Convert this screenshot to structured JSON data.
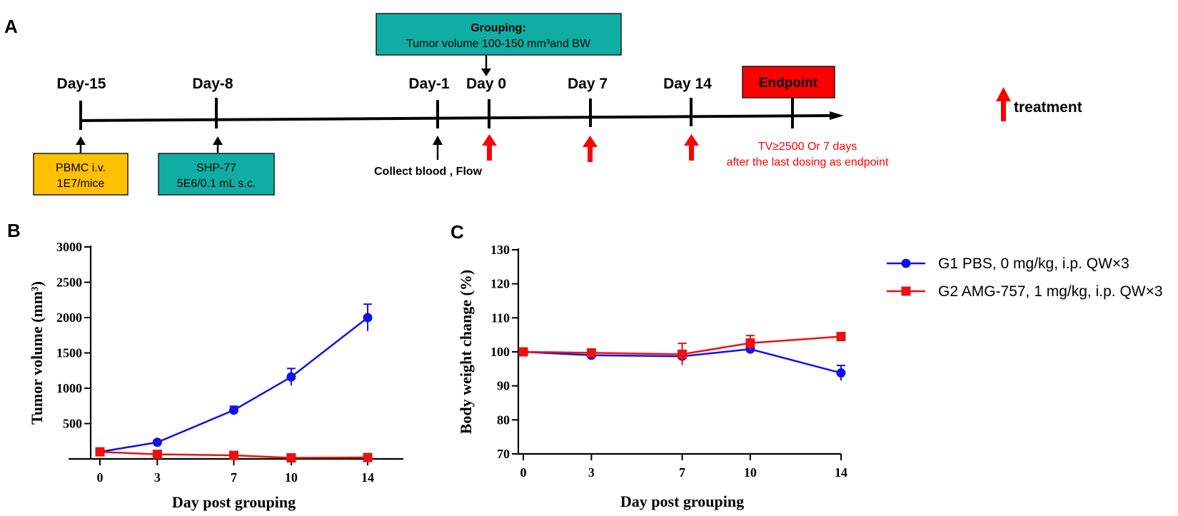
{
  "panel_a": {
    "label": "A",
    "grouping_title": "Grouping:",
    "grouping_text": "Tumor volume 100-150 mm³and BW",
    "days": [
      "Day-15",
      "Day-8",
      "Day-1",
      "Day 0",
      "Day 7",
      "Day 14"
    ],
    "endpoint_label": "Endpoint",
    "box_pbmc_line1": "PBMC  i.v.",
    "box_pbmc_line2": "1E7/mice",
    "box_shp_line1": "SHP-77",
    "box_shp_line2": "5E6/0.1 mL  s.c.",
    "collect_text": "Collect blood ,  Flow",
    "endpoint_note_line1": "TV≥2500 Or 7 days",
    "endpoint_note_line2": "after the last dosing as endpoint",
    "treatment_label": "treatment",
    "colors": {
      "teal": "#0fada3",
      "orange": "#ffc000",
      "red": "#ff0000",
      "black": "#000000"
    }
  },
  "legend": [
    {
      "label": "G1 PBS, 0 mg/kg, i.p. QW×3",
      "color": "#1010ee",
      "marker": "circle"
    },
    {
      "label": "G2 AMG-757, 1 mg/kg, i.p. QW×3",
      "color": "#ee1010",
      "marker": "square"
    }
  ],
  "chart_data": [
    {
      "panel": "B",
      "type": "line",
      "xlabel": "Day post grouping",
      "ylabel": "Tumor volume (mm³)",
      "x": [
        0,
        3,
        7,
        10,
        14
      ],
      "x_ticks": [
        "0",
        "3",
        "7",
        "10",
        "14"
      ],
      "y_ticks": [
        "500",
        "1000",
        "1500",
        "2000",
        "2500",
        "3000"
      ],
      "ylim": [
        0,
        3000
      ],
      "series": [
        {
          "name": "G1 PBS, 0 mg/kg, i.p. QW×3",
          "color": "#1010ee",
          "marker": "circle",
          "values": [
            100,
            235,
            690,
            1160,
            2000
          ],
          "err": [
            20,
            25,
            55,
            120,
            190
          ]
        },
        {
          "name": "G2 AMG-757, 1 mg/kg, i.p. QW×3",
          "color": "#ee1010",
          "marker": "square",
          "values": [
            100,
            65,
            50,
            15,
            20
          ],
          "err": [
            12,
            10,
            8,
            5,
            5
          ]
        }
      ]
    },
    {
      "panel": "C",
      "type": "line",
      "xlabel": "Day post grouping",
      "ylabel": "Body weight change (%)",
      "x": [
        0,
        3,
        7,
        10,
        14
      ],
      "x_ticks": [
        "0",
        "3",
        "7",
        "10",
        "14"
      ],
      "y_ticks": [
        "70",
        "80",
        "90",
        "100",
        "110",
        "120",
        "130"
      ],
      "ylim": [
        70,
        130
      ],
      "series": [
        {
          "name": "G1 PBS, 0 mg/kg, i.p. QW×3",
          "color": "#1010ee",
          "marker": "circle",
          "values": [
            100,
            99,
            98.7,
            100.8,
            93.8
          ],
          "err": [
            0.5,
            0.6,
            0.8,
            1.2,
            2.2
          ]
        },
        {
          "name": "G2 AMG-757, 1 mg/kg, i.p. QW×3",
          "color": "#ee1010",
          "marker": "square",
          "values": [
            100,
            99.7,
            99.3,
            102.6,
            104.5
          ],
          "err": [
            0.4,
            0.6,
            3.2,
            2.2,
            0.8
          ]
        }
      ]
    }
  ]
}
